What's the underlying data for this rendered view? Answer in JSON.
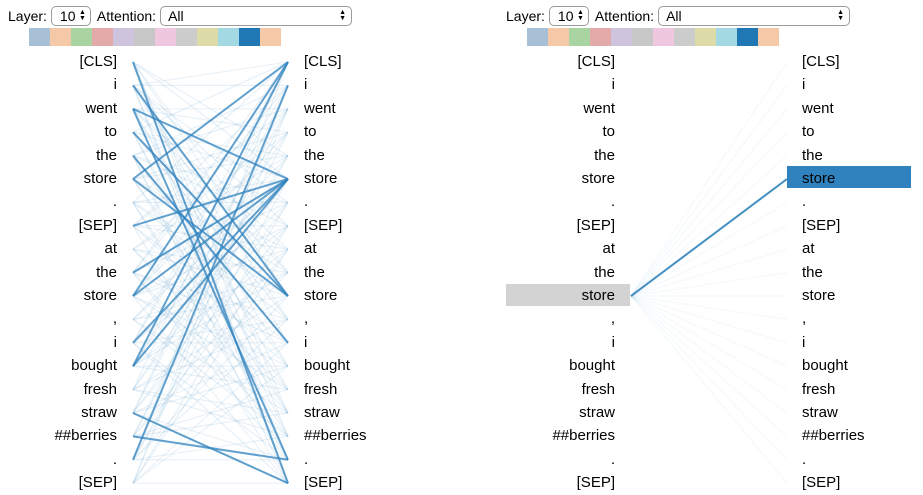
{
  "controls": {
    "layer_label": "Layer:",
    "layer_value": "10",
    "attention_label": "Attention:",
    "attention_value": "All"
  },
  "head_colors": [
    "#a8c0d6",
    "#f5c9a8",
    "#a9d3a0",
    "#e4a9a9",
    "#cfc4dd",
    "#c7c7c7",
    "#efc8e0",
    "#cccccc",
    "#dddca8",
    "#a3d9e2",
    "#1f77b4",
    "#f5c9a8"
  ],
  "selected_head_color": "#1f77b4",
  "tokens": [
    "[CLS]",
    "i",
    "went",
    "to",
    "the",
    "store",
    ".",
    "[SEP]",
    "at",
    "the",
    "store",
    ",",
    "i",
    "bought",
    "fresh",
    "straw",
    "##berries",
    ".",
    "[SEP]"
  ],
  "right_panel": {
    "selected_source_token": "store",
    "selected_target_token": "store"
  }
}
